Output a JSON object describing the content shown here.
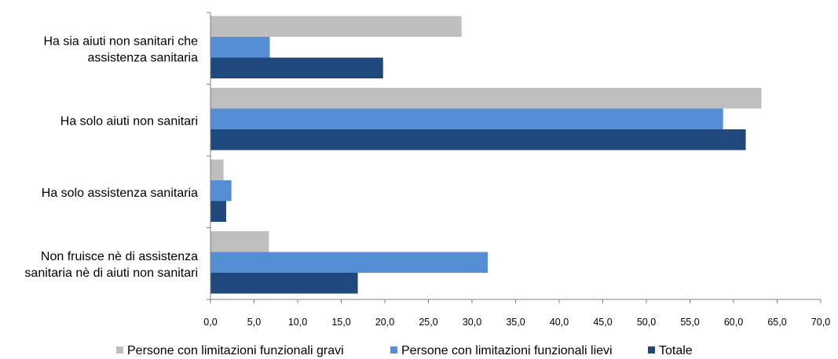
{
  "chart_data": {
    "type": "bar",
    "orientation": "horizontal",
    "categories": [
      [
        "Ha sia aiuti non sanitari che",
        "assistenza sanitaria"
      ],
      [
        "Ha solo aiuti non sanitari"
      ],
      [
        "Ha solo assistenza sanitaria"
      ],
      [
        "Non fruisce nè di assistenza",
        "sanitaria nè di aiuti non sanitari"
      ]
    ],
    "series": [
      {
        "name": "Persone con limitazioni funzionali gravi",
        "color": "#bfbfbf",
        "values": [
          28.8,
          63.2,
          1.5,
          6.7
        ]
      },
      {
        "name": "Persone con limitazioni funzionali lievi",
        "color": "#558ed5",
        "values": [
          6.8,
          58.8,
          2.4,
          31.8
        ]
      },
      {
        "name": "Totale",
        "color": "#1f497d",
        "values": [
          19.8,
          61.4,
          1.8,
          16.9
        ]
      }
    ],
    "xlim": [
      0,
      70
    ],
    "xticks": [
      "0,0",
      "5,0",
      "10,0",
      "15,0",
      "20,0",
      "25,0",
      "30,0",
      "35,0",
      "40,0",
      "45,0",
      "50,0",
      "55,0",
      "60,0",
      "65,0",
      "70,0"
    ],
    "grid": false,
    "legend_position": "bottom"
  }
}
